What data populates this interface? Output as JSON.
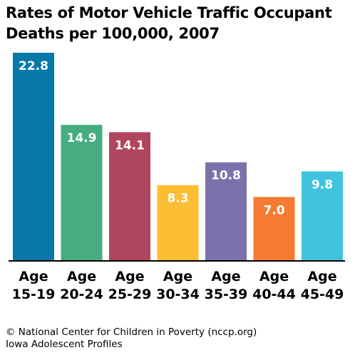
{
  "title_lines": [
    "Rates of Motor Vehicle Traffic Occupant",
    "Deaths per 100,000, 2007"
  ],
  "footer_lines": [
    "© National Center for Children in Poverty (nccp.org)",
    "Iowa Adolescent Profiles"
  ],
  "chart_data": {
    "type": "bar",
    "title": "Rates of Motor Vehicle Traffic Occupant Deaths per 100,000, 2007",
    "categories": [
      [
        "Age",
        "15-19"
      ],
      [
        "Age",
        "20-24"
      ],
      [
        "Age",
        "25-29"
      ],
      [
        "Age",
        "30-34"
      ],
      [
        "Age",
        "35-39"
      ],
      [
        "Age",
        "40-44"
      ],
      [
        "Age",
        "45-49"
      ]
    ],
    "values": [
      22.8,
      14.9,
      14.1,
      8.3,
      10.8,
      7.0,
      9.8
    ],
    "value_labels": [
      "22.8",
      "14.9",
      "14.1",
      "8.3",
      "10.8",
      "7.0",
      "9.8"
    ],
    "colors": [
      "#0778a8",
      "#45ad80",
      "#b0465e",
      "#fcbe32",
      "#7d71ac",
      "#f57b33",
      "#40c4de"
    ],
    "xlabel": "",
    "ylabel": "",
    "ylim": [
      0,
      22.8
    ],
    "grid": false,
    "legend": "none"
  }
}
